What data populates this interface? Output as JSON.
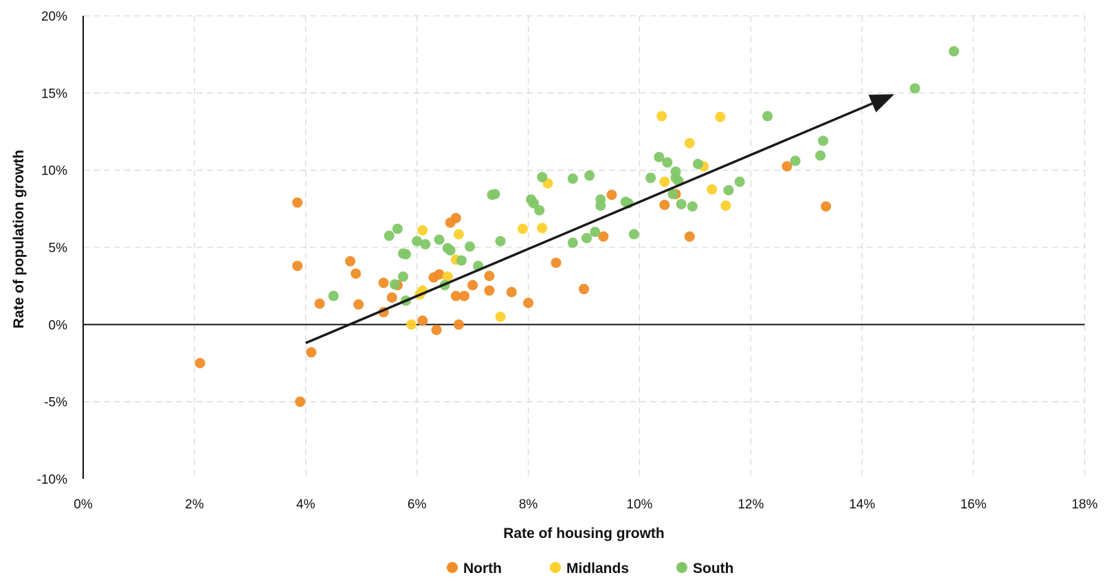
{
  "chart_data": {
    "type": "scatter",
    "title": "",
    "xlabel": "Rate of housing growth",
    "ylabel": "Rate of population growth",
    "xlim": [
      0,
      18
    ],
    "ylim": [
      -10,
      20
    ],
    "x_ticks": [
      0,
      2,
      4,
      6,
      8,
      10,
      12,
      14,
      16,
      18
    ],
    "y_ticks": [
      -10,
      -5,
      0,
      5,
      10,
      15,
      20
    ],
    "x_tick_labels": [
      "0%",
      "2%",
      "4%",
      "6%",
      "8%",
      "10%",
      "12%",
      "14%",
      "16%",
      "18%"
    ],
    "y_tick_labels": [
      "-10%",
      "-5%",
      "0%",
      "5%",
      "10%",
      "15%",
      "20%"
    ],
    "grid": "dashed",
    "legend_position": "bottom",
    "trend_arrow": {
      "from": [
        4.0,
        -1.2
      ],
      "to": [
        14.5,
        14.8
      ],
      "color": "#1a1a1a"
    },
    "series": [
      {
        "name": "North",
        "color": "#f08c28",
        "points": [
          [
            2.1,
            -2.5
          ],
          [
            3.9,
            -5.0
          ],
          [
            4.1,
            -1.8
          ],
          [
            3.85,
            7.9
          ],
          [
            3.85,
            3.8
          ],
          [
            4.25,
            1.35
          ],
          [
            4.8,
            4.1
          ],
          [
            4.9,
            3.3
          ],
          [
            4.95,
            1.3
          ],
          [
            5.4,
            2.7
          ],
          [
            5.4,
            0.8
          ],
          [
            5.55,
            1.75
          ],
          [
            5.65,
            2.55
          ],
          [
            6.1,
            0.25
          ],
          [
            6.3,
            3.05
          ],
          [
            6.35,
            -0.35
          ],
          [
            6.4,
            3.25
          ],
          [
            6.6,
            6.6
          ],
          [
            6.7,
            6.9
          ],
          [
            6.7,
            1.85
          ],
          [
            6.75,
            0.0
          ],
          [
            6.85,
            1.85
          ],
          [
            7.0,
            2.55
          ],
          [
            7.3,
            3.15
          ],
          [
            7.3,
            2.2
          ],
          [
            7.7,
            2.1
          ],
          [
            8.0,
            1.4
          ],
          [
            8.5,
            4.0
          ],
          [
            9.0,
            2.3
          ],
          [
            9.35,
            5.7
          ],
          [
            9.5,
            8.4
          ],
          [
            10.45,
            7.75
          ],
          [
            10.65,
            8.45
          ],
          [
            10.9,
            5.7
          ],
          [
            12.65,
            10.25
          ],
          [
            13.35,
            7.65
          ]
        ]
      },
      {
        "name": "Midlands",
        "color": "#fbd12e",
        "points": [
          [
            5.9,
            0.0
          ],
          [
            6.05,
            1.95
          ],
          [
            6.1,
            2.2
          ],
          [
            6.1,
            6.1
          ],
          [
            6.55,
            3.1
          ],
          [
            6.7,
            4.2
          ],
          [
            6.75,
            5.85
          ],
          [
            7.5,
            0.5
          ],
          [
            7.9,
            6.2
          ],
          [
            8.25,
            6.25
          ],
          [
            8.35,
            9.15
          ],
          [
            10.4,
            13.5
          ],
          [
            10.45,
            9.25
          ],
          [
            10.9,
            11.75
          ],
          [
            11.15,
            10.25
          ],
          [
            11.3,
            8.75
          ],
          [
            11.45,
            13.45
          ],
          [
            11.55,
            7.7
          ]
        ]
      },
      {
        "name": "South",
        "color": "#82c767",
        "points": [
          [
            4.5,
            1.85
          ],
          [
            5.5,
            5.75
          ],
          [
            5.6,
            2.6
          ],
          [
            5.65,
            6.2
          ],
          [
            5.75,
            4.6
          ],
          [
            5.75,
            3.1
          ],
          [
            5.8,
            4.55
          ],
          [
            5.8,
            1.55
          ],
          [
            6.0,
            5.4
          ],
          [
            6.15,
            5.2
          ],
          [
            6.4,
            5.5
          ],
          [
            6.5,
            2.55
          ],
          [
            6.55,
            4.95
          ],
          [
            6.6,
            4.8
          ],
          [
            6.8,
            4.15
          ],
          [
            6.95,
            5.05
          ],
          [
            7.1,
            3.8
          ],
          [
            7.35,
            8.4
          ],
          [
            7.4,
            8.45
          ],
          [
            7.5,
            5.4
          ],
          [
            8.05,
            8.1
          ],
          [
            8.1,
            7.85
          ],
          [
            8.2,
            7.4
          ],
          [
            8.25,
            9.55
          ],
          [
            8.8,
            9.45
          ],
          [
            8.8,
            5.3
          ],
          [
            9.05,
            5.6
          ],
          [
            9.1,
            9.65
          ],
          [
            9.2,
            6.0
          ],
          [
            9.3,
            8.1
          ],
          [
            9.3,
            7.7
          ],
          [
            9.75,
            7.95
          ],
          [
            9.8,
            7.85
          ],
          [
            9.9,
            5.85
          ],
          [
            10.2,
            9.5
          ],
          [
            10.35,
            10.85
          ],
          [
            10.5,
            10.5
          ],
          [
            10.6,
            8.45
          ],
          [
            10.65,
            9.9
          ],
          [
            10.65,
            9.5
          ],
          [
            10.7,
            9.3
          ],
          [
            10.75,
            7.8
          ],
          [
            10.95,
            7.65
          ],
          [
            11.05,
            10.4
          ],
          [
            11.6,
            8.7
          ],
          [
            11.8,
            9.25
          ],
          [
            12.3,
            13.5
          ],
          [
            12.8,
            10.6
          ],
          [
            13.25,
            10.95
          ],
          [
            13.3,
            11.9
          ],
          [
            14.95,
            15.3
          ],
          [
            15.65,
            17.7
          ]
        ]
      }
    ]
  }
}
